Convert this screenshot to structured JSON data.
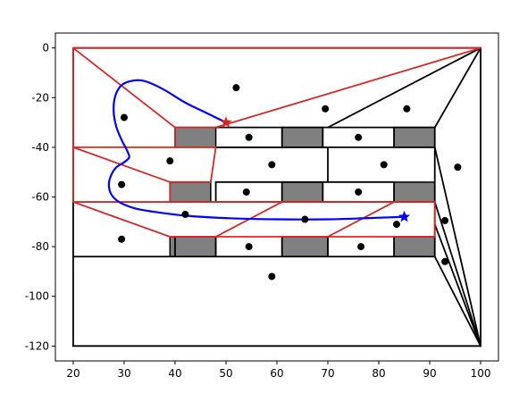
{
  "chart_data": {
    "type": "scatter",
    "title": "",
    "xlabel": "",
    "ylabel": "",
    "xlim": [
      16.5,
      103.5
    ],
    "ylim": [
      -126,
      6
    ],
    "grid": false,
    "x_ticks": [
      20,
      30,
      40,
      50,
      60,
      70,
      80,
      90,
      100
    ],
    "y_ticks": [
      0,
      -20,
      -40,
      -60,
      -80,
      -100,
      -120
    ],
    "colors": {
      "border": "#000000",
      "cell_edge": "#000000",
      "red_edge": "#d62728",
      "gray_fill": "#808080",
      "curve": "#0000ff",
      "start_marker": "#d62728",
      "end_marker": "#0000ff",
      "points": "#000000"
    },
    "outer_boundary": [
      [
        20,
        0
      ],
      [
        100,
        0
      ],
      [
        100,
        -120
      ],
      [
        20,
        -120
      ],
      [
        20,
        0
      ]
    ],
    "black_lines": [
      [
        [
          20,
          -84
        ],
        [
          91,
          -84
        ]
      ],
      [
        [
          91,
          -32
        ],
        [
          100,
          0
        ]
      ],
      [
        [
          91,
          -84
        ],
        [
          100,
          -120
        ]
      ],
      [
        [
          91,
          -32
        ],
        [
          91,
          -84
        ]
      ],
      [
        [
          91,
          -40
        ],
        [
          100,
          -120
        ]
      ],
      [
        [
          91,
          -62
        ],
        [
          100,
          -120
        ]
      ],
      [
        [
          91,
          -71
        ],
        [
          100,
          -120
        ]
      ],
      [
        [
          70,
          -32
        ],
        [
          100,
          0
        ]
      ],
      [
        [
          61,
          -40
        ],
        [
          61,
          -32
        ]
      ],
      [
        [
          69,
          -40
        ],
        [
          69,
          -32
        ]
      ],
      [
        [
          83,
          -40
        ],
        [
          83,
          -32
        ]
      ],
      [
        [
          48,
          -54
        ],
        [
          83,
          -54
        ]
      ],
      [
        [
          48,
          -54
        ],
        [
          48,
          -62
        ]
      ],
      [
        [
          61,
          -54
        ],
        [
          61,
          -62
        ]
      ],
      [
        [
          69,
          -54
        ],
        [
          69,
          -62
        ]
      ],
      [
        [
          83,
          -54
        ],
        [
          83,
          -62
        ]
      ],
      [
        [
          70,
          -40
        ],
        [
          70,
          -54
        ]
      ],
      [
        [
          48,
          -40
        ],
        [
          70,
          -40
        ]
      ],
      [
        [
          40,
          -84
        ],
        [
          40,
          -76
        ]
      ],
      [
        [
          48,
          -84
        ],
        [
          48,
          -76
        ]
      ],
      [
        [
          61,
          -84
        ],
        [
          61,
          -76
        ]
      ],
      [
        [
          70,
          -84
        ],
        [
          70,
          -76
        ]
      ],
      [
        [
          83,
          -84
        ],
        [
          83,
          -76
        ]
      ],
      [
        [
          48,
          -32
        ],
        [
          91,
          -32
        ]
      ],
      [
        [
          48,
          -40
        ],
        [
          91,
          -40
        ]
      ],
      [
        [
          48,
          -62
        ],
        [
          91,
          -62
        ]
      ]
    ],
    "gray_cells": [
      [
        [
          40,
          -32
        ],
        [
          48,
          -32
        ],
        [
          48,
          -40
        ],
        [
          40,
          -40
        ]
      ],
      [
        [
          61,
          -32
        ],
        [
          69,
          -32
        ],
        [
          69,
          -40
        ],
        [
          61,
          -40
        ]
      ],
      [
        [
          83,
          -32
        ],
        [
          91,
          -32
        ],
        [
          91,
          -40
        ],
        [
          83,
          -40
        ]
      ],
      [
        [
          39,
          -54
        ],
        [
          47,
          -54
        ],
        [
          47,
          -62
        ],
        [
          39,
          -62
        ]
      ],
      [
        [
          61,
          -54
        ],
        [
          69,
          -54
        ],
        [
          69,
          -62
        ],
        [
          61,
          -62
        ]
      ],
      [
        [
          83,
          -54
        ],
        [
          91,
          -54
        ],
        [
          91,
          -62
        ],
        [
          83,
          -62
        ]
      ],
      [
        [
          39,
          -76
        ],
        [
          48,
          -76
        ],
        [
          48,
          -84
        ],
        [
          39,
          -84
        ]
      ],
      [
        [
          61,
          -76
        ],
        [
          70,
          -76
        ],
        [
          70,
          -84
        ],
        [
          61,
          -84
        ]
      ],
      [
        [
          83,
          -76
        ],
        [
          91,
          -76
        ],
        [
          91,
          -84
        ],
        [
          83,
          -84
        ]
      ]
    ],
    "red_lines": [
      [
        [
          20,
          0
        ],
        [
          100,
          0
        ]
      ],
      [
        [
          20,
          0
        ],
        [
          20,
          -62
        ]
      ],
      [
        [
          20,
          0
        ],
        [
          40,
          -32
        ]
      ],
      [
        [
          40,
          -32
        ],
        [
          48,
          -32
        ]
      ],
      [
        [
          40,
          -32
        ],
        [
          40,
          -40
        ]
      ],
      [
        [
          48,
          -32
        ],
        [
          100,
          0
        ]
      ],
      [
        [
          20,
          -40
        ],
        [
          48,
          -40
        ]
      ],
      [
        [
          48,
          -40
        ],
        [
          47,
          -54
        ]
      ],
      [
        [
          20,
          -40
        ],
        [
          39,
          -54
        ]
      ],
      [
        [
          39,
          -54
        ],
        [
          47,
          -54
        ]
      ],
      [
        [
          39,
          -54
        ],
        [
          39,
          -62
        ]
      ],
      [
        [
          20,
          -62
        ],
        [
          91,
          -62
        ]
      ],
      [
        [
          91,
          -62
        ],
        [
          91,
          -76
        ]
      ],
      [
        [
          20,
          -62
        ],
        [
          39,
          -76
        ]
      ],
      [
        [
          39,
          -76
        ],
        [
          91,
          -76
        ]
      ],
      [
        [
          48,
          -76
        ],
        [
          61,
          -62
        ]
      ],
      [
        [
          70,
          -76
        ],
        [
          83,
          -62
        ]
      ]
    ],
    "curve": [
      [
        50,
        -30
      ],
      [
        46,
        -26
      ],
      [
        42,
        -22
      ],
      [
        38,
        -17
      ],
      [
        35,
        -14
      ],
      [
        33,
        -13
      ],
      [
        31,
        -13.5
      ],
      [
        29.5,
        -15
      ],
      [
        28.5,
        -18
      ],
      [
        28,
        -22
      ],
      [
        28,
        -27
      ],
      [
        28.5,
        -32
      ],
      [
        29.5,
        -37
      ],
      [
        30.5,
        -41
      ],
      [
        31,
        -44
      ],
      [
        30,
        -46
      ],
      [
        28.5,
        -48
      ],
      [
        27.5,
        -51
      ],
      [
        27,
        -55
      ],
      [
        27.5,
        -59
      ],
      [
        29,
        -62
      ],
      [
        32,
        -64.5
      ],
      [
        36,
        -66
      ],
      [
        42,
        -67.5
      ],
      [
        50,
        -68.5
      ],
      [
        60,
        -69
      ],
      [
        70,
        -69
      ],
      [
        78,
        -68.5
      ],
      [
        85,
        -68
      ]
    ],
    "start_point": [
      50,
      -30
    ],
    "end_point": [
      85,
      -68
    ],
    "points": [
      [
        52,
        -16
      ],
      [
        30,
        -28
      ],
      [
        69.5,
        -24.5
      ],
      [
        85.5,
        -24.5
      ],
      [
        54.5,
        -36
      ],
      [
        76,
        -36
      ],
      [
        39,
        -45.5
      ],
      [
        59,
        -47
      ],
      [
        81,
        -47
      ],
      [
        95.5,
        -48
      ],
      [
        29.5,
        -55
      ],
      [
        54,
        -58
      ],
      [
        76,
        -58
      ],
      [
        42,
        -67
      ],
      [
        65.5,
        -69
      ],
      [
        83.5,
        -71
      ],
      [
        93,
        -69.5
      ],
      [
        29.5,
        -77
      ],
      [
        54.5,
        -80
      ],
      [
        76.5,
        -80
      ],
      [
        93,
        -86
      ],
      [
        59,
        -92
      ]
    ]
  }
}
